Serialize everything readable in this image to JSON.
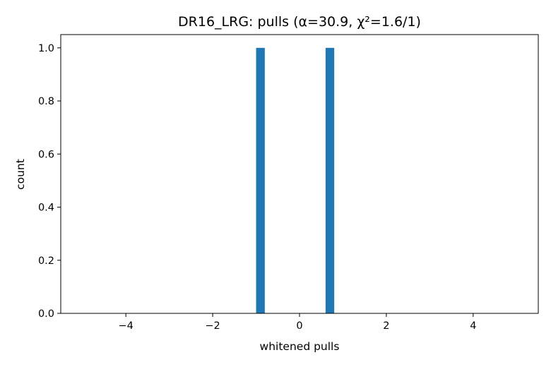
{
  "chart_data": {
    "type": "bar",
    "title": "DR16_LRG: pulls (α=30.9, χ²=1.6/1)",
    "xlabel": "whitened pulls",
    "ylabel": "count",
    "xlim": [
      -5.5,
      5.5
    ],
    "ylim": [
      0,
      1.05
    ],
    "xticks": [
      -4,
      -2,
      0,
      2,
      4
    ],
    "xtick_labels": [
      "−4",
      "−2",
      "0",
      "2",
      "4"
    ],
    "yticks": [
      0.0,
      0.2,
      0.4,
      0.6,
      0.8,
      1.0
    ],
    "ytick_labels": [
      "0.0",
      "0.2",
      "0.4",
      "0.6",
      "0.8",
      "1.0"
    ],
    "bars": [
      {
        "x_start": -1.0,
        "x_end": -0.8,
        "value": 1
      },
      {
        "x_start": 0.6,
        "x_end": 0.8,
        "value": 1
      }
    ],
    "bar_color": "#1f77b4",
    "grid": false,
    "legend": "none"
  }
}
